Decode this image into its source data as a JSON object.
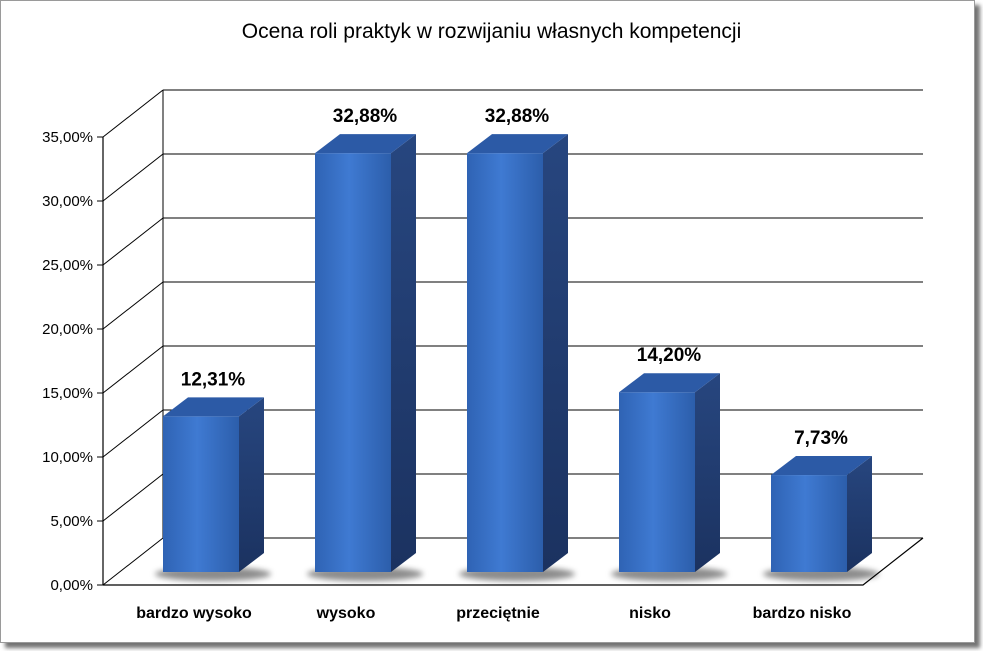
{
  "chart_data": {
    "type": "bar",
    "title": "Ocena roli praktyk w rozwijaniu własnych kompetencji",
    "categories": [
      "bardzo wysoko",
      "wysoko",
      "przeciętnie",
      "nisko",
      "bardzo nisko"
    ],
    "values": [
      12.31,
      32.88,
      32.88,
      14.2,
      7.73
    ],
    "value_labels": [
      "12,31%",
      "32,88%",
      "32,88%",
      "14,20%",
      "7,73%"
    ],
    "ylim": [
      0,
      35
    ],
    "yticks": [
      "0,00%",
      "5,00%",
      "10,00%",
      "15,00%",
      "20,00%",
      "25,00%",
      "30,00%",
      "35,00%"
    ],
    "grid": true,
    "legend": "none",
    "style": "3d-column",
    "colors": {
      "bar_front": "#3a74c8",
      "bar_side": "#233d6e",
      "bar_top": "#2c5aa6"
    }
  }
}
